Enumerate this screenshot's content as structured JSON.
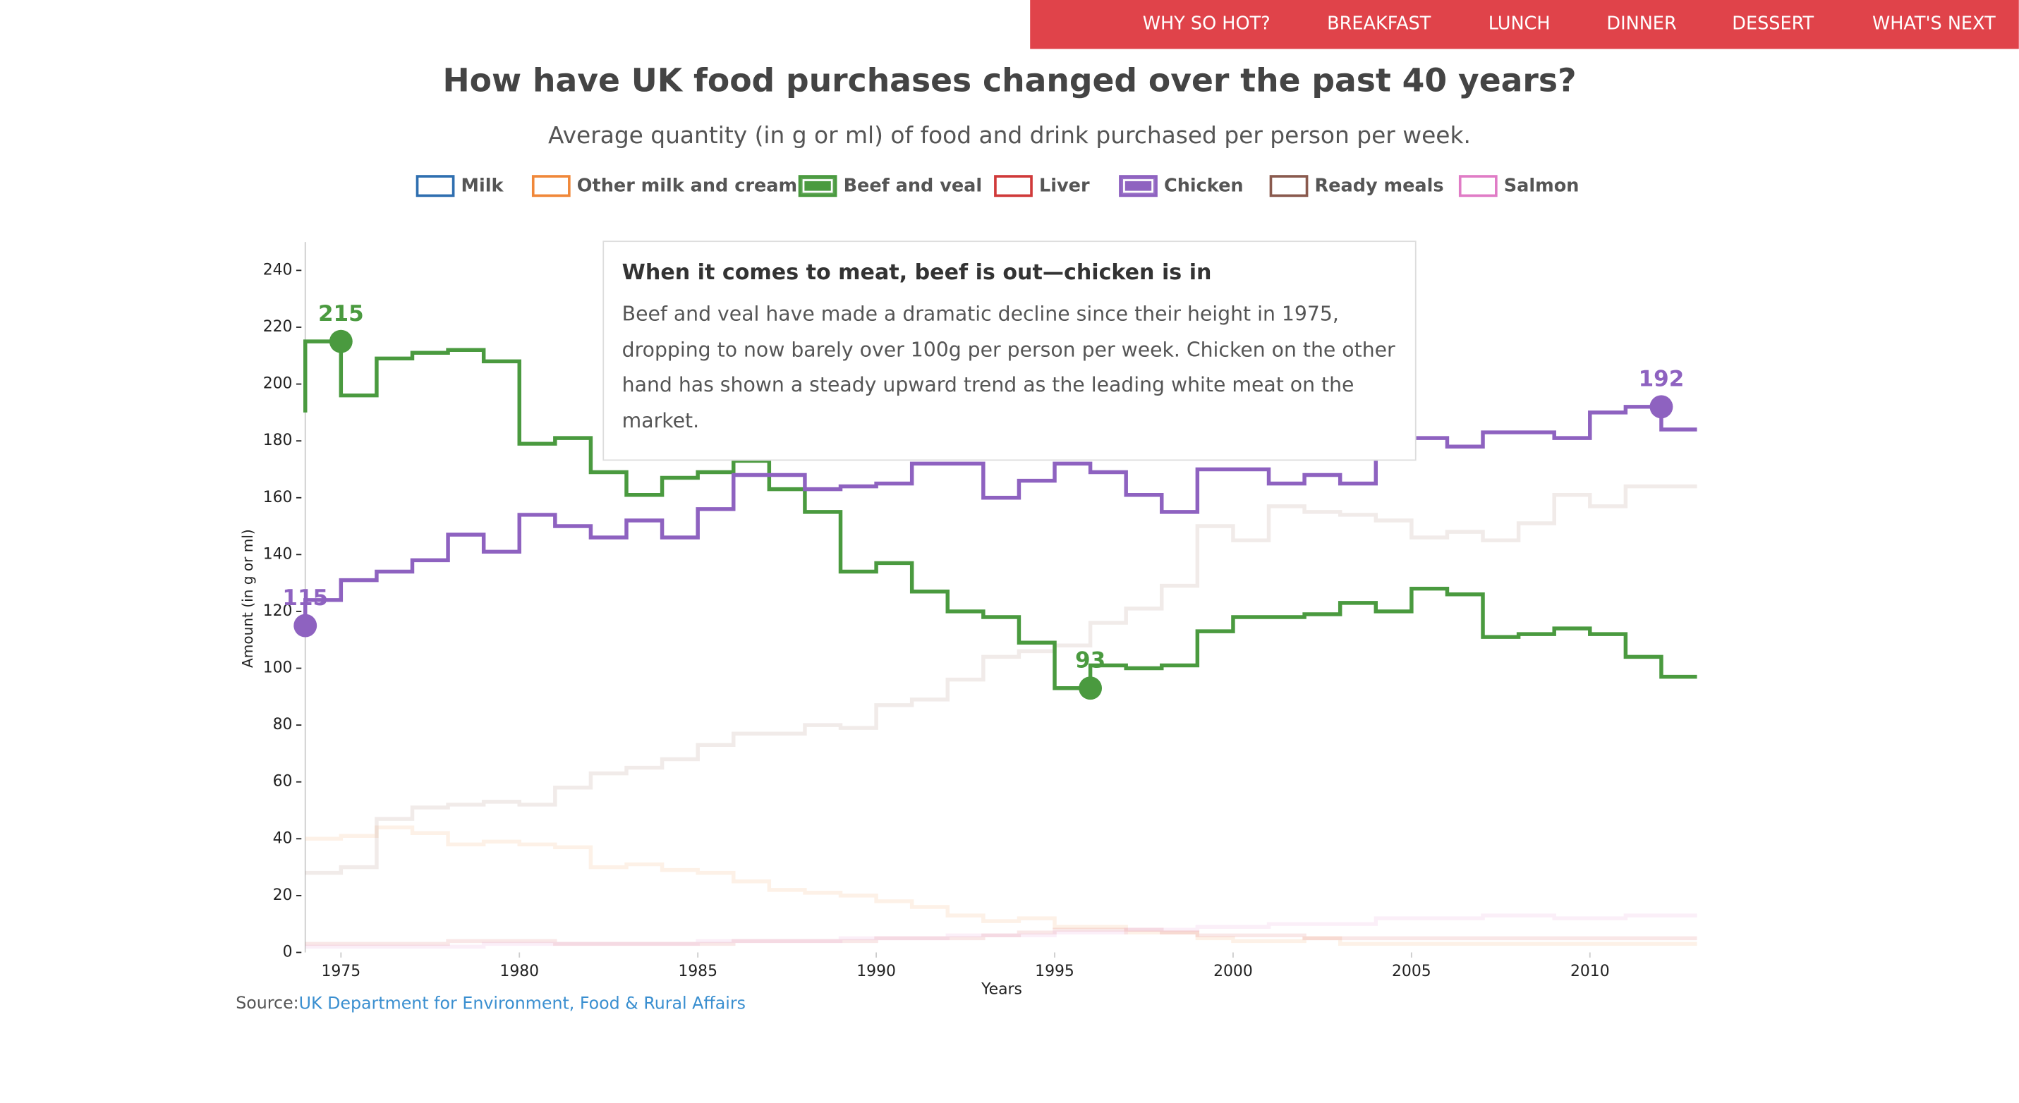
{
  "nav": [
    "WHY SO HOT?",
    "BREAKFAST",
    "LUNCH",
    "DINNER",
    "DESSERT",
    "WHAT'S NEXT"
  ],
  "chart_data": {
    "type": "step-line",
    "title": "How have UK food purchases changed over the past 40 years?",
    "subtitle": "Average quantity (in g or ml) of food and drink purchased per person per week.",
    "x_label": "Years",
    "y_label": "Amount (in g or ml)",
    "x": [
      1974,
      1975,
      1976,
      1977,
      1978,
      1979,
      1980,
      1981,
      1982,
      1983,
      1984,
      1985,
      1986,
      1987,
      1988,
      1989,
      1990,
      1991,
      1992,
      1993,
      1994,
      1995,
      1996,
      1997,
      1998,
      1999,
      2000,
      2001,
      2002,
      2003,
      2004,
      2005,
      2006,
      2007,
      2008,
      2009,
      2010,
      2011,
      2012,
      2013
    ],
    "xlim": [
      1974,
      2013
    ],
    "xticks": [
      1975,
      1980,
      1985,
      1990,
      1995,
      2000,
      2005,
      2010
    ],
    "ylim": [
      0,
      250
    ],
    "yticks": [
      0,
      20,
      40,
      60,
      80,
      100,
      120,
      140,
      160,
      180,
      200,
      220,
      240
    ],
    "series": [
      {
        "name": "Milk",
        "color": "#2f6fb0",
        "opacity": 0.12,
        "highlight_points": [],
        "values": [
          null,
          null,
          null,
          null,
          null,
          null,
          null,
          null,
          null,
          null,
          null,
          null,
          null,
          null,
          null,
          null,
          null,
          null,
          null,
          null,
          null,
          null,
          null,
          null,
          null,
          null,
          null,
          null,
          null,
          null,
          null,
          null,
          null,
          null,
          null,
          null,
          null,
          null,
          null,
          null
        ]
      },
      {
        "name": "Other milk and cream",
        "color": "#f0883a",
        "opacity": 0.12,
        "highlight_points": [],
        "values": [
          40,
          40,
          41,
          44,
          42,
          38,
          39,
          38,
          37,
          30,
          31,
          29,
          28,
          25,
          22,
          21,
          20,
          18,
          16,
          13,
          11,
          12,
          9,
          9,
          7,
          7,
          5,
          4,
          4,
          5,
          3,
          3,
          3,
          3,
          3,
          3,
          3,
          3,
          3,
          3
        ]
      },
      {
        "name": "Beef and veal",
        "color": "#4a9a3f",
        "opacity": 1,
        "highlight_points": [
          1,
          22
        ],
        "values": [
          190,
          215,
          196,
          209,
          211,
          212,
          208,
          179,
          181,
          169,
          161,
          167,
          169,
          173,
          163,
          155,
          134,
          137,
          127,
          120,
          118,
          109,
          93,
          101,
          100,
          101,
          113,
          118,
          118,
          119,
          123,
          120,
          128,
          126,
          111,
          112,
          114,
          112,
          104,
          97
        ]
      },
      {
        "name": "Liver",
        "color": "#d03a3a",
        "opacity": 0.12,
        "highlight_points": [],
        "values": [
          3,
          3,
          3,
          3,
          3,
          4,
          4,
          4,
          3,
          3,
          3,
          3,
          3,
          4,
          4,
          4,
          4,
          5,
          5,
          5,
          6,
          7,
          8,
          8,
          8,
          7,
          6,
          6,
          6,
          5,
          5,
          5,
          5,
          5,
          5,
          5,
          5,
          5,
          5,
          5
        ]
      },
      {
        "name": "Chicken",
        "color": "#8e62c0",
        "opacity": 1,
        "highlight_points": [
          0,
          38
        ],
        "values": [
          115,
          124,
          131,
          134,
          138,
          147,
          141,
          154,
          150,
          146,
          152,
          146,
          156,
          168,
          168,
          163,
          164,
          165,
          172,
          172,
          160,
          166,
          172,
          169,
          161,
          155,
          170,
          170,
          165,
          168,
          165,
          181,
          181,
          178,
          183,
          183,
          181,
          190,
          192,
          184
        ]
      },
      {
        "name": "Ready meals",
        "color": "#8a5a4e",
        "opacity": 0.12,
        "highlight_points": [],
        "values": [
          28,
          28,
          30,
          47,
          51,
          52,
          53,
          52,
          58,
          63,
          65,
          68,
          73,
          77,
          77,
          80,
          79,
          87,
          89,
          96,
          104,
          106,
          108,
          116,
          121,
          129,
          150,
          145,
          157,
          155,
          154,
          152,
          146,
          148,
          145,
          151,
          161,
          157,
          164,
          164
        ]
      },
      {
        "name": "Salmon",
        "color": "#e07cc6",
        "opacity": 0.12,
        "highlight_points": [],
        "values": [
          2,
          2,
          2,
          2,
          2,
          2,
          3,
          3,
          3,
          3,
          3,
          3,
          4,
          4,
          4,
          4,
          5,
          5,
          5,
          6,
          6,
          6,
          7,
          7,
          8,
          8,
          9,
          9,
          10,
          10,
          10,
          12,
          12,
          12,
          13,
          13,
          12,
          12,
          13,
          13
        ]
      }
    ],
    "annotation": {
      "title": "When it comes to meat, beef is out—chicken is in",
      "text": "Beef and veal have made a dramatic decline since their height in 1975, dropping to now barely over 100g per person per week. Chicken on the other hand has shown a steady upward trend as the leading white meat on the market."
    },
    "source_label": "Source:",
    "source": "UK Department for Environment, Food & Rural Affairs"
  }
}
